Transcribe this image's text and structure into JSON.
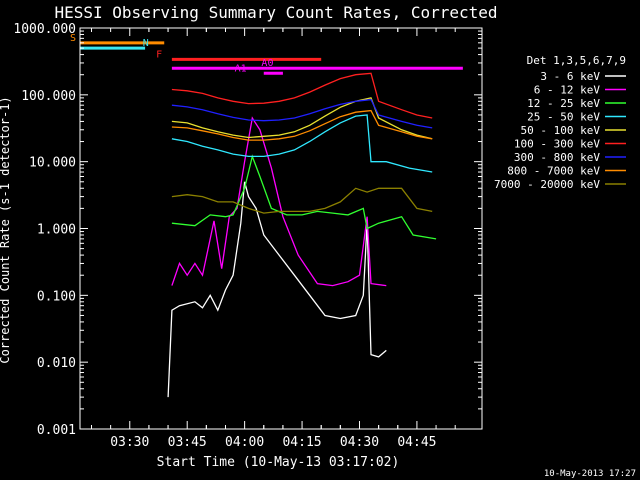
{
  "chart_data": {
    "type": "line",
    "title": "HESSI Observing Summary Count Rates, Corrected",
    "xlabel": "Start Time (10-May-13 03:17:02)",
    "ylabel": "Corrected Count Rate (s-1 detector-1)",
    "yscale": "log",
    "ylim": [
      0.001,
      1000
    ],
    "xlim_minutes_after_0317": [
      0,
      105
    ],
    "x_ticks": [
      "03:30",
      "03:45",
      "04:00",
      "04:15",
      "04:30",
      "04:45"
    ],
    "y_ticks": [
      "0.001",
      "0.010",
      "0.100",
      "1.000",
      "10.000",
      "100.000",
      "1000.000"
    ],
    "legend_title": "Det 1,3,5,6,7,9",
    "timestamp": "10-May-2013 17:27",
    "flags": [
      {
        "label": "S",
        "color": "#ff8c00",
        "y": 600,
        "x": [
          0,
          22
        ],
        "label_x": 0
      },
      {
        "label": "N",
        "color": "#38e6f0",
        "y": 500,
        "x": [
          0,
          17
        ],
        "label_x": 19
      },
      {
        "label": "F",
        "color": "#ff2020",
        "y": 340,
        "x": [
          24,
          63
        ],
        "label_x": 22.5
      },
      {
        "label": "A0",
        "color": "#ff00ff",
        "y": 250,
        "x": [
          24,
          100
        ],
        "label_x": 50
      },
      {
        "label": "A1",
        "color": "#ff00ff",
        "y": 210,
        "x": [
          48,
          53
        ],
        "label_x": 43
      }
    ],
    "series": [
      {
        "name": "3 - 6 keV",
        "color": "#ffffff",
        "points": [
          [
            23,
            0.003
          ],
          [
            24,
            0.06
          ],
          [
            26,
            0.07
          ],
          [
            30,
            0.08
          ],
          [
            32,
            0.065
          ],
          [
            34,
            0.1
          ],
          [
            36,
            0.06
          ],
          [
            38,
            0.12
          ],
          [
            40,
            0.2
          ],
          [
            42,
            1.2
          ],
          [
            43,
            5
          ],
          [
            44,
            3
          ],
          [
            46,
            2
          ],
          [
            48,
            0.8
          ],
          [
            52,
            0.4
          ],
          [
            56,
            0.2
          ],
          [
            60,
            0.1
          ],
          [
            64,
            0.05
          ],
          [
            68,
            0.045
          ],
          [
            72,
            0.05
          ],
          [
            74,
            0.1
          ],
          [
            75,
            1.2
          ],
          [
            76,
            0.013
          ],
          [
            78,
            0.012
          ],
          [
            80,
            0.015
          ]
        ]
      },
      {
        "name": "6 - 12 keV",
        "color": "#ff00ff",
        "points": [
          [
            24,
            0.14
          ],
          [
            26,
            0.3
          ],
          [
            28,
            0.2
          ],
          [
            30,
            0.3
          ],
          [
            32,
            0.2
          ],
          [
            35,
            1.3
          ],
          [
            37,
            0.25
          ],
          [
            39,
            1.5
          ],
          [
            41,
            2
          ],
          [
            43,
            10
          ],
          [
            45,
            45
          ],
          [
            47,
            30
          ],
          [
            50,
            8
          ],
          [
            53,
            1.5
          ],
          [
            57,
            0.4
          ],
          [
            62,
            0.15
          ],
          [
            66,
            0.14
          ],
          [
            70,
            0.16
          ],
          [
            73,
            0.2
          ],
          [
            75,
            1.5
          ],
          [
            76,
            0.15
          ],
          [
            80,
            0.14
          ]
        ]
      },
      {
        "name": "12 - 25 keV",
        "color": "#30ff30",
        "points": [
          [
            24,
            1.2
          ],
          [
            30,
            1.1
          ],
          [
            34,
            1.6
          ],
          [
            38,
            1.5
          ],
          [
            40,
            1.6
          ],
          [
            43,
            4
          ],
          [
            45,
            12
          ],
          [
            47,
            6
          ],
          [
            50,
            2
          ],
          [
            54,
            1.6
          ],
          [
            58,
            1.6
          ],
          [
            62,
            1.8
          ],
          [
            66,
            1.7
          ],
          [
            70,
            1.6
          ],
          [
            74,
            2
          ],
          [
            75,
            1
          ],
          [
            78,
            1.2
          ],
          [
            84,
            1.5
          ],
          [
            87,
            0.8
          ],
          [
            93,
            0.7
          ]
        ]
      },
      {
        "name": "25 - 50 keV",
        "color": "#30e8ff",
        "points": [
          [
            24,
            22
          ],
          [
            28,
            20
          ],
          [
            32,
            17
          ],
          [
            36,
            15
          ],
          [
            40,
            13
          ],
          [
            44,
            12
          ],
          [
            48,
            12
          ],
          [
            52,
            13
          ],
          [
            56,
            15
          ],
          [
            60,
            20
          ],
          [
            64,
            28
          ],
          [
            68,
            38
          ],
          [
            72,
            48
          ],
          [
            75,
            50
          ],
          [
            76,
            10
          ],
          [
            80,
            10
          ],
          [
            86,
            8
          ],
          [
            92,
            7
          ]
        ]
      },
      {
        "name": "50 - 100 keV",
        "color": "#e8e030",
        "points": [
          [
            24,
            40
          ],
          [
            28,
            38
          ],
          [
            32,
            32
          ],
          [
            36,
            28
          ],
          [
            40,
            25
          ],
          [
            44,
            23
          ],
          [
            48,
            24
          ],
          [
            52,
            25
          ],
          [
            56,
            28
          ],
          [
            60,
            35
          ],
          [
            64,
            48
          ],
          [
            68,
            65
          ],
          [
            72,
            80
          ],
          [
            76,
            90
          ],
          [
            78,
            45
          ],
          [
            84,
            30
          ],
          [
            88,
            25
          ],
          [
            92,
            22
          ]
        ]
      },
      {
        "name": "100 - 300 keV",
        "color": "#ff2020",
        "points": [
          [
            24,
            120
          ],
          [
            28,
            115
          ],
          [
            32,
            105
          ],
          [
            36,
            90
          ],
          [
            40,
            80
          ],
          [
            44,
            74
          ],
          [
            48,
            75
          ],
          [
            52,
            80
          ],
          [
            56,
            90
          ],
          [
            60,
            110
          ],
          [
            64,
            140
          ],
          [
            68,
            175
          ],
          [
            72,
            200
          ],
          [
            76,
            210
          ],
          [
            78,
            80
          ],
          [
            84,
            60
          ],
          [
            88,
            50
          ],
          [
            92,
            45
          ]
        ]
      },
      {
        "name": "300 - 800 keV",
        "color": "#2020ff",
        "points": [
          [
            24,
            70
          ],
          [
            28,
            66
          ],
          [
            32,
            60
          ],
          [
            36,
            52
          ],
          [
            40,
            46
          ],
          [
            44,
            42
          ],
          [
            48,
            41
          ],
          [
            52,
            42
          ],
          [
            56,
            45
          ],
          [
            60,
            52
          ],
          [
            64,
            62
          ],
          [
            68,
            72
          ],
          [
            72,
            80
          ],
          [
            76,
            85
          ],
          [
            78,
            50
          ],
          [
            84,
            40
          ],
          [
            88,
            35
          ],
          [
            92,
            32
          ]
        ]
      },
      {
        "name": "800 - 7000 keV",
        "color": "#ff8c00",
        "points": [
          [
            24,
            33
          ],
          [
            28,
            32
          ],
          [
            32,
            29
          ],
          [
            36,
            26
          ],
          [
            40,
            23
          ],
          [
            44,
            21
          ],
          [
            48,
            21
          ],
          [
            52,
            22
          ],
          [
            56,
            24
          ],
          [
            60,
            29
          ],
          [
            64,
            37
          ],
          [
            68,
            47
          ],
          [
            72,
            55
          ],
          [
            76,
            58
          ],
          [
            78,
            35
          ],
          [
            84,
            28
          ],
          [
            88,
            24
          ],
          [
            92,
            22
          ]
        ]
      },
      {
        "name": "7000 - 20000 keV",
        "color": "#8b8000",
        "points": [
          [
            24,
            3
          ],
          [
            28,
            3.2
          ],
          [
            32,
            3
          ],
          [
            36,
            2.5
          ],
          [
            40,
            2.5
          ],
          [
            44,
            2
          ],
          [
            48,
            1.7
          ],
          [
            52,
            1.8
          ],
          [
            56,
            1.8
          ],
          [
            60,
            1.8
          ],
          [
            64,
            2
          ],
          [
            68,
            2.5
          ],
          [
            72,
            4
          ],
          [
            75,
            3.5
          ],
          [
            78,
            4
          ],
          [
            84,
            4
          ],
          [
            88,
            2
          ],
          [
            92,
            1.8
          ]
        ]
      }
    ]
  }
}
